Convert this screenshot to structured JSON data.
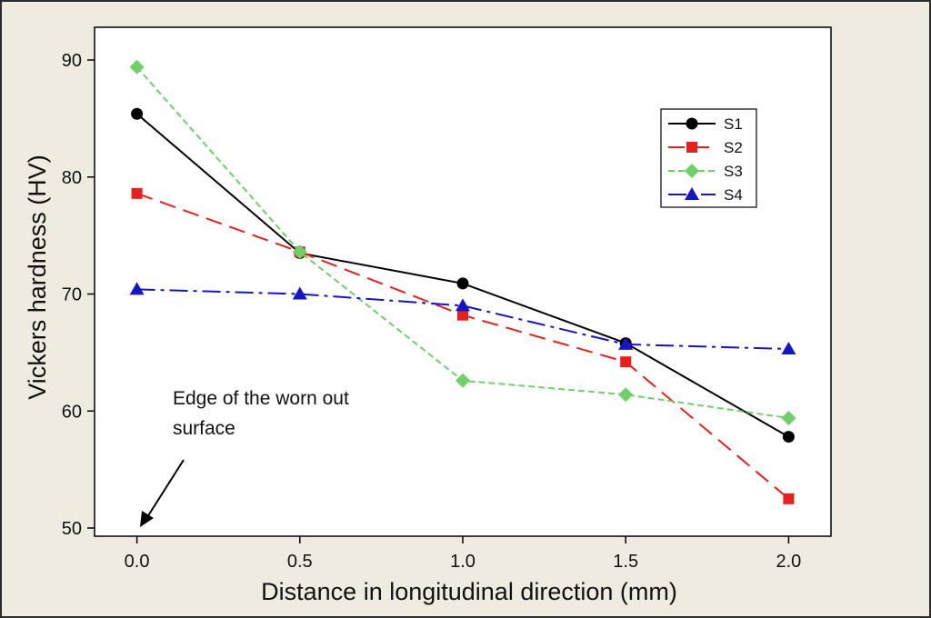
{
  "chart_data": {
    "type": "line",
    "title": "",
    "xlabel": "Distance in longitudinal direction (mm)",
    "ylabel": "Vickers hardness (HV)",
    "x": [
      0.0,
      0.5,
      1.0,
      1.5,
      2.0
    ],
    "x_tick_labels": [
      "0.0",
      "0.5",
      "1.0",
      "1.5",
      "2.0"
    ],
    "y_ticks": [
      50,
      60,
      70,
      80,
      90
    ],
    "y_tick_labels": [
      "50",
      "60",
      "70",
      "80",
      "90"
    ],
    "xlim": [
      -0.13,
      2.13
    ],
    "ylim": [
      49.3,
      92.8
    ],
    "grid": false,
    "legend_position": "top-right",
    "series": [
      {
        "name": "S1",
        "values": [
          85.4,
          73.5,
          70.9,
          65.8,
          57.8
        ],
        "color": "#000000",
        "marker": "circle",
        "dash": ""
      },
      {
        "name": "S2",
        "values": [
          78.6,
          73.6,
          68.2,
          64.2,
          52.5
        ],
        "color": "#e8201b",
        "marker": "square",
        "dash": "18,9"
      },
      {
        "name": "S3",
        "values": [
          89.4,
          73.6,
          62.6,
          61.4,
          59.4
        ],
        "color": "#6fcf68",
        "marker": "diamond",
        "dash": "7,4"
      },
      {
        "name": "S4",
        "values": [
          70.4,
          70.0,
          69.0,
          65.7,
          65.3
        ],
        "color": "#1515c8",
        "marker": "triangle",
        "dash": "20,6,4,6"
      }
    ],
    "annotation": {
      "line1": "Edge of the worn out",
      "line2": "surface"
    }
  }
}
